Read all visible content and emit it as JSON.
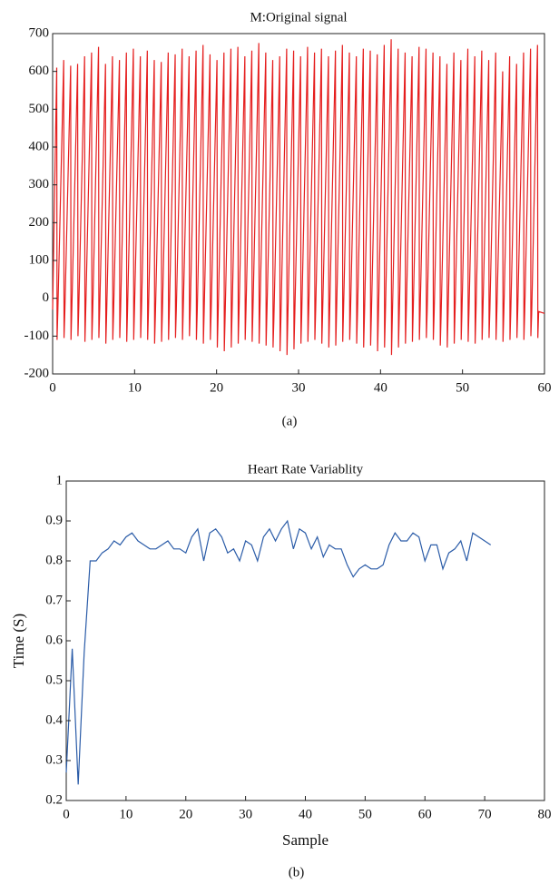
{
  "chart_data": [
    {
      "type": "line",
      "title": "M:Original signal",
      "caption": "(a)",
      "xlim": [
        0,
        60
      ],
      "xticks": [
        0,
        10,
        20,
        30,
        40,
        50,
        60
      ],
      "ylim": [
        -200,
        700
      ],
      "yticks": [
        -200,
        -100,
        0,
        100,
        200,
        300,
        400,
        500,
        600,
        700
      ],
      "series": [
        {
          "color": "#e51e1e",
          "x": [
            0,
            0.5,
            0.54,
            0.64,
            1.35,
            1.39,
            1.49,
            2.2,
            2.24,
            2.34,
            3.05,
            3.09,
            3.19,
            3.9,
            3.94,
            4.04,
            4.75,
            4.79,
            4.89,
            5.6,
            5.64,
            5.74,
            6.45,
            6.49,
            6.59,
            7.3,
            7.34,
            7.44,
            8.15,
            8.19,
            8.29,
            9,
            9.04,
            9.14,
            9.85,
            9.89,
            9.99,
            10.7,
            10.74,
            10.84,
            11.55,
            11.59,
            11.69,
            12.4,
            12.44,
            12.54,
            13.25,
            13.29,
            13.39,
            14.1,
            14.14,
            14.24,
            14.95,
            14.99,
            15.09,
            15.8,
            15.84,
            15.94,
            16.65,
            16.69,
            16.79,
            17.5,
            17.54,
            17.64,
            18.35,
            18.39,
            18.49,
            19.2,
            19.24,
            19.34,
            20.05,
            20.09,
            20.19,
            20.9,
            20.94,
            21.04,
            21.75,
            21.79,
            21.89,
            22.6,
            22.64,
            22.74,
            23.45,
            23.49,
            23.59,
            24.3,
            24.34,
            24.44,
            25.15,
            25.19,
            25.29,
            26,
            26.04,
            26.14,
            26.85,
            26.89,
            26.99,
            27.7,
            27.74,
            27.84,
            28.55,
            28.59,
            28.69,
            29.4,
            29.44,
            29.54,
            30.25,
            30.29,
            30.39,
            31.1,
            31.14,
            31.24,
            31.95,
            31.99,
            32.09,
            32.8,
            32.84,
            32.94,
            33.65,
            33.69,
            33.79,
            34.5,
            34.54,
            34.64,
            35.35,
            35.39,
            35.49,
            36.2,
            36.24,
            36.34,
            37.05,
            37.09,
            37.19,
            37.9,
            37.94,
            38.04,
            38.75,
            38.79,
            38.89,
            39.6,
            39.64,
            39.74,
            40.45,
            40.49,
            40.59,
            41.3,
            41.34,
            41.44,
            42.15,
            42.19,
            42.29,
            43,
            43.04,
            43.14,
            43.85,
            43.89,
            43.99,
            44.7,
            44.74,
            44.84,
            45.55,
            45.59,
            45.69,
            46.4,
            46.44,
            46.54,
            47.25,
            47.29,
            47.39,
            48.1,
            48.14,
            48.24,
            48.95,
            48.99,
            49.09,
            49.8,
            49.84,
            49.94,
            50.65,
            50.69,
            50.79,
            51.5,
            51.54,
            51.64,
            52.35,
            52.39,
            52.49,
            53.2,
            53.24,
            53.34,
            54.05,
            54.09,
            54.19,
            54.9,
            54.94,
            55.04,
            55.75,
            55.79,
            55.89,
            56.6,
            56.64,
            56.74,
            57.45,
            57.49,
            57.59,
            58.3,
            58.34,
            58.44,
            59.15,
            59.19,
            59.29,
            60
          ],
          "values": [
            -30,
            610,
            -110,
            -30,
            630,
            -105,
            -35,
            615,
            -110,
            -30,
            620,
            -100,
            -25,
            640,
            -115,
            -30,
            650,
            -110,
            -35,
            665,
            -105,
            -30,
            620,
            -120,
            -40,
            640,
            -110,
            -35,
            630,
            -105,
            -30,
            650,
            -115,
            -30,
            660,
            -110,
            -25,
            640,
            -105,
            -30,
            655,
            -110,
            -35,
            630,
            -120,
            -40,
            625,
            -115,
            -35,
            650,
            -110,
            -30,
            645,
            -105,
            -30,
            660,
            -110,
            -25,
            640,
            -100,
            -30,
            655,
            -110,
            -35,
            670,
            -120,
            -30,
            645,
            -110,
            -35,
            630,
            -130,
            -45,
            650,
            -140,
            -50,
            660,
            -130,
            -40,
            665,
            -120,
            -35,
            640,
            -110,
            -30,
            655,
            -115,
            -30,
            675,
            -120,
            -30,
            650,
            -125,
            -40,
            630,
            -130,
            -55,
            640,
            -140,
            -60,
            660,
            -150,
            -55,
            655,
            -135,
            -45,
            640,
            -120,
            -40,
            665,
            -115,
            -35,
            650,
            -110,
            -30,
            660,
            -120,
            -35,
            640,
            -130,
            -40,
            655,
            -125,
            -35,
            670,
            -115,
            -30,
            650,
            -110,
            -35,
            640,
            -120,
            -40,
            660,
            -130,
            -45,
            655,
            -125,
            -40,
            645,
            -140,
            -50,
            670,
            -130,
            -45,
            685,
            -150,
            -50,
            660,
            -130,
            -40,
            650,
            -120,
            -35,
            640,
            -115,
            -30,
            665,
            -110,
            -30,
            660,
            -105,
            -35,
            650,
            -110,
            -40,
            640,
            -125,
            -45,
            620,
            -130,
            -40,
            650,
            -120,
            -35,
            630,
            -110,
            -30,
            660,
            -115,
            -35,
            640,
            -120,
            -40,
            655,
            -110,
            -35,
            630,
            -105,
            -30,
            650,
            -110,
            -35,
            600,
            -115,
            -40,
            640,
            -110,
            -35,
            620,
            -105,
            -30,
            650,
            -110,
            -35,
            660,
            -100,
            -40,
            670,
            -105,
            -35,
            -40
          ]
        }
      ]
    },
    {
      "type": "line",
      "title": "Heart Rate Variablity",
      "caption": "(b)",
      "xlabel": "Sample",
      "ylabel": "Time (S)",
      "xlim": [
        0,
        80
      ],
      "xticks": [
        0,
        10,
        20,
        30,
        40,
        50,
        60,
        70,
        80
      ],
      "ylim": [
        0.2,
        1
      ],
      "yticks": [
        0.2,
        0.3,
        0.4,
        0.5,
        0.6,
        0.7,
        0.8,
        0.9,
        1
      ],
      "series": [
        {
          "color": "#2b5ca8",
          "x": [
            0,
            1,
            2,
            3,
            4,
            5,
            6,
            7,
            8,
            9,
            10,
            11,
            12,
            13,
            14,
            15,
            16,
            17,
            18,
            19,
            20,
            21,
            22,
            23,
            24,
            25,
            26,
            27,
            28,
            29,
            30,
            31,
            32,
            33,
            34,
            35,
            36,
            37,
            38,
            39,
            40,
            41,
            42,
            43,
            44,
            45,
            46,
            47,
            48,
            49,
            50,
            51,
            52,
            53,
            54,
            55,
            56,
            57,
            58,
            59,
            60,
            61,
            62,
            63,
            64,
            65,
            66,
            67,
            68,
            69,
            70,
            71
          ],
          "values": [
            0.27,
            0.58,
            0.24,
            0.57,
            0.8,
            0.8,
            0.82,
            0.83,
            0.85,
            0.84,
            0.86,
            0.87,
            0.85,
            0.84,
            0.83,
            0.83,
            0.84,
            0.85,
            0.83,
            0.83,
            0.82,
            0.86,
            0.88,
            0.8,
            0.87,
            0.88,
            0.86,
            0.82,
            0.83,
            0.8,
            0.85,
            0.84,
            0.8,
            0.86,
            0.88,
            0.85,
            0.88,
            0.9,
            0.83,
            0.88,
            0.87,
            0.83,
            0.86,
            0.81,
            0.84,
            0.83,
            0.83,
            0.79,
            0.76,
            0.78,
            0.79,
            0.78,
            0.78,
            0.79,
            0.84,
            0.87,
            0.85,
            0.85,
            0.87,
            0.86,
            0.8,
            0.84,
            0.84,
            0.78,
            0.82,
            0.83,
            0.85,
            0.8,
            0.87,
            0.86,
            0.85,
            0.84
          ]
        }
      ]
    }
  ]
}
